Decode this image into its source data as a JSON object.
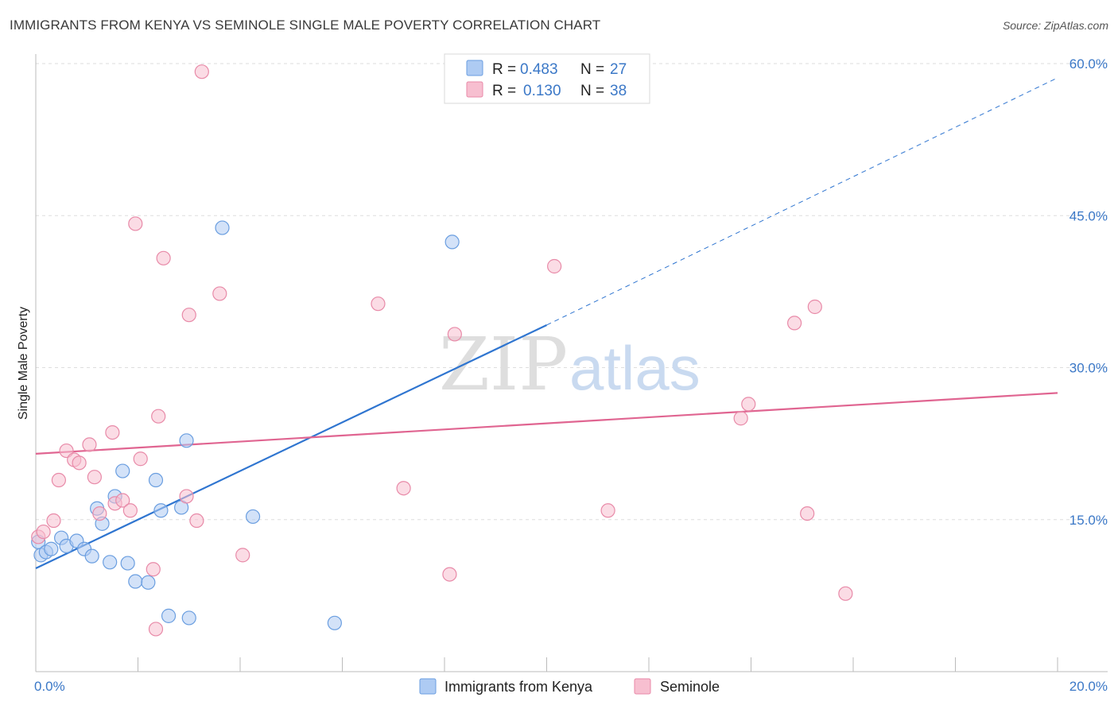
{
  "title": "IMMIGRANTS FROM KENYA VS SEMINOLE SINGLE MALE POVERTY CORRELATION CHART",
  "source": "Source: ZipAtlas.com",
  "watermark": {
    "part1": "ZIP",
    "part2": "atlas"
  },
  "colors": {
    "kenya_fill": "#aecbf3",
    "kenya_stroke": "#6a9ee0",
    "kenya_line": "#2f75d0",
    "seminole_fill": "#f7bfd0",
    "seminole_stroke": "#e88aa8",
    "seminole_line": "#e06591",
    "tick_blue": "#3b78c7",
    "grid": "#dddddd"
  },
  "legend": {
    "rows": [
      {
        "r_label": "R =",
        "r_value": "0.483",
        "n_label": "N =",
        "n_value": "27"
      },
      {
        "r_label": "R =",
        "r_value": "0.130",
        "n_label": "N =",
        "n_value": "38"
      }
    ]
  },
  "chart_data": {
    "type": "scatter",
    "title": "IMMIGRANTS FROM KENYA VS SEMINOLE SINGLE MALE POVERTY CORRELATION CHART",
    "xlabel": "",
    "ylabel": "Single Male Poverty",
    "xlim": [
      0,
      20
    ],
    "ylim": [
      0,
      60
    ],
    "x_tick_labels": [
      "0.0%",
      "20.0%"
    ],
    "y_ticks": [
      15,
      30,
      45,
      60
    ],
    "y_tick_labels": [
      "15.0%",
      "30.0%",
      "45.0%",
      "60.0%"
    ],
    "grid": true,
    "legend_position": "top-center",
    "series": [
      {
        "name": "Immigrants from Kenya",
        "points": [
          [
            0.05,
            12.8
          ],
          [
            0.1,
            11.5
          ],
          [
            0.2,
            11.8
          ],
          [
            0.3,
            12.1
          ],
          [
            0.5,
            13.2
          ],
          [
            0.6,
            12.4
          ],
          [
            0.8,
            12.9
          ],
          [
            0.95,
            12.1
          ],
          [
            1.1,
            11.4
          ],
          [
            1.2,
            16.1
          ],
          [
            1.3,
            14.6
          ],
          [
            1.45,
            10.8
          ],
          [
            1.55,
            17.3
          ],
          [
            1.7,
            19.8
          ],
          [
            1.8,
            10.7
          ],
          [
            1.95,
            8.9
          ],
          [
            2.2,
            8.8
          ],
          [
            2.35,
            18.9
          ],
          [
            2.45,
            15.9
          ],
          [
            2.6,
            5.5
          ],
          [
            2.85,
            16.2
          ],
          [
            2.95,
            22.8
          ],
          [
            3.0,
            5.3
          ],
          [
            3.65,
            43.8
          ],
          [
            4.25,
            15.3
          ],
          [
            5.85,
            4.8
          ],
          [
            8.15,
            42.4
          ]
        ],
        "trend": {
          "x_start": 0,
          "y_start": 10.2,
          "x_solid_end": 10,
          "y_solid_end": 34.2,
          "x_end": 20,
          "y_end": 58.6
        }
      },
      {
        "name": "Seminole",
        "points": [
          [
            0.05,
            13.3
          ],
          [
            0.15,
            13.8
          ],
          [
            0.35,
            14.9
          ],
          [
            0.45,
            18.9
          ],
          [
            0.6,
            21.8
          ],
          [
            0.75,
            20.9
          ],
          [
            0.85,
            20.6
          ],
          [
            1.05,
            22.4
          ],
          [
            1.15,
            19.2
          ],
          [
            1.25,
            15.6
          ],
          [
            1.5,
            23.6
          ],
          [
            1.55,
            16.6
          ],
          [
            1.7,
            16.9
          ],
          [
            1.85,
            15.9
          ],
          [
            1.95,
            44.2
          ],
          [
            2.05,
            21.0
          ],
          [
            2.3,
            10.1
          ],
          [
            2.35,
            4.2
          ],
          [
            2.4,
            25.2
          ],
          [
            2.5,
            40.8
          ],
          [
            2.95,
            17.3
          ],
          [
            3.0,
            35.2
          ],
          [
            3.15,
            14.9
          ],
          [
            3.25,
            59.2
          ],
          [
            3.6,
            37.3
          ],
          [
            4.05,
            11.5
          ],
          [
            6.7,
            36.3
          ],
          [
            7.2,
            18.1
          ],
          [
            8.1,
            9.6
          ],
          [
            8.2,
            33.3
          ],
          [
            10.15,
            40.0
          ],
          [
            11.2,
            15.9
          ],
          [
            13.8,
            25.0
          ],
          [
            13.95,
            26.4
          ],
          [
            14.85,
            34.4
          ],
          [
            15.1,
            15.6
          ],
          [
            15.25,
            36.0
          ],
          [
            15.85,
            7.7
          ]
        ],
        "trend": {
          "x_start": 0,
          "y_start": 21.5,
          "x_end": 20,
          "y_end": 27.5
        }
      }
    ]
  }
}
